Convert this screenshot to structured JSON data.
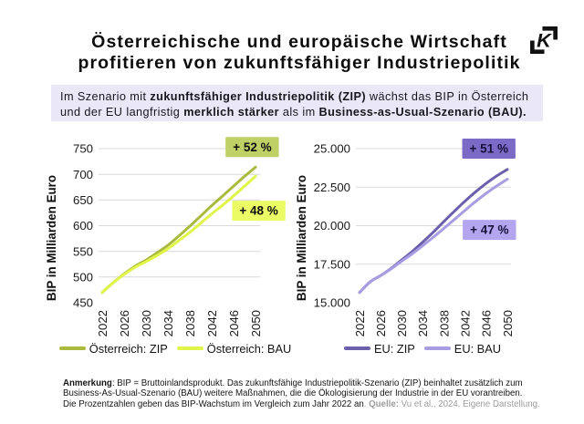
{
  "header": {
    "title_line1": "Österreichische und europäische Wirtschaft",
    "title_line2": "profitieren von zukunftsfähiger Industriepolitik",
    "logo_letter": "K"
  },
  "intro": {
    "l1a": "Im Szenario mit ",
    "l1b": "zukunftsfähiger Industriepolitik (ZIP)",
    "l1c": " wächst das BIP in Österreich",
    "l2a": "und der EU langfristig ",
    "l2b": "merklich stärker",
    "l2c": " als im ",
    "l2d": "Business-as-Usual-Szenario (BAU)."
  },
  "chart_data": [
    {
      "type": "line",
      "ylabel": "BIP in Milliarden Euro",
      "ylim": [
        450,
        750
      ],
      "yticks": [
        450,
        500,
        550,
        600,
        650,
        700,
        750
      ],
      "ytick_labels": [
        "450",
        "500",
        "550",
        "600",
        "650",
        "700",
        "750"
      ],
      "grid": "horizontal, no line at lowest tick",
      "legend_position": "bottom",
      "x": [
        2022,
        2024,
        2026,
        2028,
        2030,
        2032,
        2034,
        2036,
        2038,
        2040,
        2042,
        2044,
        2046,
        2048,
        2050
      ],
      "xtick_labels": [
        "2022",
        "2026",
        "2030",
        "2034",
        "2038",
        "2042",
        "2046",
        "2050"
      ],
      "series": [
        {
          "name": "Österreich: ZIP",
          "color": "#aaba3f",
          "values": [
            470,
            489,
            506,
            521,
            533,
            547,
            562,
            580,
            599,
            619,
            639,
            658,
            677,
            696,
            714
          ]
        },
        {
          "name": "Österreich: BAU",
          "color": "#e0f44a",
          "values": [
            470,
            489,
            505,
            519,
            530,
            542,
            555,
            571,
            587,
            605,
            623,
            640,
            658,
            677,
            696
          ]
        }
      ],
      "annotations": [
        {
          "label": "+ 52 %",
          "x": 2049.4,
          "y": 753,
          "bg": "#bed066",
          "fg": "#101010"
        },
        {
          "label": "+ 48 %",
          "x": 2050.6,
          "y": 629,
          "bg": "#eafb66",
          "fg": "#101010"
        }
      ]
    },
    {
      "type": "line",
      "ylabel": "BIP in Milliarden Euro",
      "ylim": [
        15000,
        25000
      ],
      "yticks": [
        15000,
        17500,
        20000,
        22500,
        25000
      ],
      "ytick_labels": [
        "15.000",
        "17.500",
        "20.000",
        "22.500",
        "25.000"
      ],
      "grid": "horizontal, no line at lowest tick",
      "legend_position": "bottom",
      "x": [
        2022,
        2024,
        2026,
        2028,
        2030,
        2032,
        2034,
        2036,
        2038,
        2040,
        2042,
        2044,
        2046,
        2048,
        2050
      ],
      "xtick_labels": [
        "2022",
        "2026",
        "2030",
        "2034",
        "2038",
        "2042",
        "2046",
        "2050"
      ],
      "series": [
        {
          "name": "EU: ZIP",
          "color": "#6c60ad",
          "values": [
            15660,
            16350,
            16760,
            17230,
            17780,
            18330,
            18940,
            19590,
            20280,
            20950,
            21600,
            22200,
            22750,
            23230,
            23650
          ]
        },
        {
          "name": "EU: BAU",
          "color": "#a89ce3",
          "values": [
            15660,
            16350,
            16760,
            17200,
            17700,
            18180,
            18710,
            19260,
            19830,
            20410,
            21000,
            21570,
            22100,
            22580,
            23020
          ]
        }
      ],
      "annotations": [
        {
          "label": "+ 51 %",
          "x": 2046.5,
          "y": 25000,
          "bg": "#7c6bc6",
          "fg": "#16113a"
        },
        {
          "label": "+ 47 %",
          "x": 2046.6,
          "y": 19730,
          "bg": "#b3a6ef",
          "fg": "#16113a"
        }
      ]
    }
  ],
  "footnote": {
    "l1b": "Anmerkung",
    "l1": ": BIP = Bruttoinlandsprodukt. Das zukunftsfähige Industriepolitik-Szenario (ZIP) beinhaltet zusätzlich zum",
    "l2": "Business-As-Usual-Szenario (BAU) weitere Maßnahmen, die die Ökologisierung der Industrie in der EU vorantreiben.",
    "l3": "Die Prozentzahlen geben das BIP-Wachstum im Vergleich zum Jahr 2022 an",
    "l3sep": ". ",
    "l3b": "Quelle:",
    "l3c": " Vu et al., 2024. Eigene Darstellung."
  }
}
